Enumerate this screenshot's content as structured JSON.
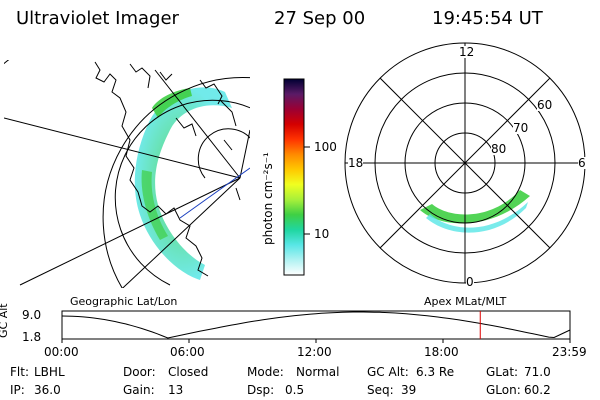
{
  "header": {
    "instrument": "Ultraviolet Imager",
    "date": "27 Sep 00",
    "time": "19:45:54 UT"
  },
  "colorbar": {
    "unit_label": "photon cm⁻²s⁻¹",
    "ticks": [
      "100",
      "10"
    ],
    "colors": [
      "#000033",
      "#5a1a66",
      "#9b0033",
      "#d40000",
      "#ff3300",
      "#ff8a00",
      "#ffc800",
      "#f0ff20",
      "#a8f03a",
      "#3fcf44",
      "#20d6a0",
      "#58e6e6",
      "#b0f2f2",
      "#ffffff"
    ]
  },
  "geo_map": {
    "label": "Geographic Lat/Lon"
  },
  "polar_map": {
    "label": "Apex MLat/MLT",
    "mlt_labels": [
      "12",
      "18",
      "6",
      "0"
    ],
    "lat_labels": [
      "60",
      "70",
      "80"
    ]
  },
  "altitude_plot": {
    "ylabel": "GC Alt",
    "yticks": [
      "9.0",
      "1.8"
    ],
    "xticks": [
      "00:00",
      "06:00",
      "12:00",
      "18:00",
      "23:59"
    ],
    "marker_hour": 19.76,
    "marker_color": "#dd0000"
  },
  "status": {
    "row1": [
      {
        "label": "Flt:",
        "value": "LBHL"
      },
      {
        "label": "Door:",
        "value": "Closed"
      },
      {
        "label": "Mode:",
        "value": "Normal"
      },
      {
        "label": "GC Alt:",
        "value": "6.3 Re"
      },
      {
        "label": "GLat:",
        "value": "71.0"
      }
    ],
    "row2": [
      {
        "label": "IP:",
        "value": "36.0"
      },
      {
        "label": "Gain:",
        "value": "13"
      },
      {
        "label": "Dsp:",
        "value": "0.5"
      },
      {
        "label": "Seq:",
        "value": "39"
      },
      {
        "label": "GLon:",
        "value": "60.2"
      }
    ]
  }
}
